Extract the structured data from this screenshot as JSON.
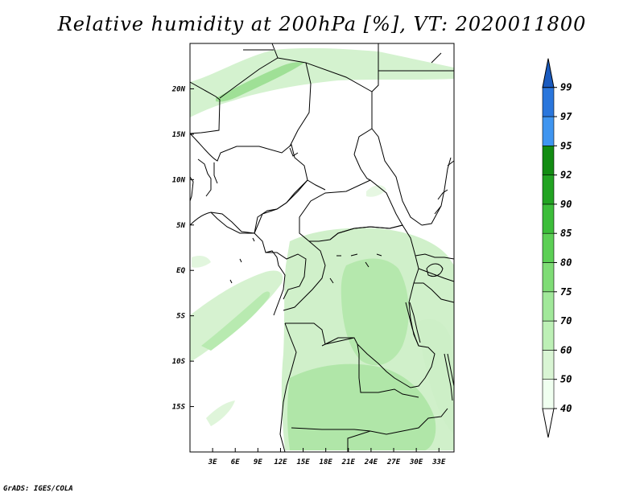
{
  "title": "Relative humidity at 200hPa [%], VT: 2020011800",
  "credit": "GrADS: IGES/COLA",
  "map": {
    "lon_labels": [
      "3E",
      "6E",
      "9E",
      "12E",
      "15E",
      "18E",
      "21E",
      "24E",
      "27E",
      "30E",
      "33E"
    ],
    "lat_labels": [
      "20N",
      "15N",
      "10N",
      "5N",
      "EQ",
      "5S",
      "10S",
      "15S"
    ],
    "lon_range": [
      0,
      35
    ],
    "lat_range": [
      -20,
      25
    ]
  },
  "colorbar": {
    "labels": [
      "40",
      "50",
      "60",
      "70",
      "75",
      "80",
      "85",
      "90",
      "92",
      "95",
      "97",
      "99"
    ],
    "colors": [
      "#f0fff0",
      "#d9f5d4",
      "#bdf0b6",
      "#a1e89a",
      "#7fdc76",
      "#5ccf55",
      "#3cbd3a",
      "#22a322",
      "#128c12",
      "#3f95f0",
      "#2a76dc",
      "#1a5bbf"
    ],
    "lower_color": "#ffffff"
  }
}
